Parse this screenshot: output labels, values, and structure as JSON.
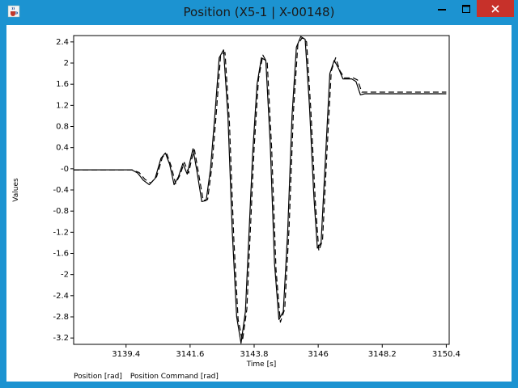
{
  "window": {
    "title": "Position (X5-1 | X-00148)",
    "accent_color": "#1c93d1",
    "close_button_color": "#c7312a",
    "controls": [
      "minimize-icon",
      "maximize-icon",
      "close-icon"
    ]
  },
  "chart_data": {
    "type": "line",
    "title": "",
    "xlabel": "Time [s]",
    "ylabel": "Values",
    "xlim": [
      3137.6,
      3150.5
    ],
    "ylim": [
      -3.32,
      2.52
    ],
    "x_ticks": [
      "3139.4",
      "3141.6",
      "3143.8",
      "3146",
      "3148.2",
      "3150.4"
    ],
    "y_ticks": [
      "2.4",
      "2",
      "1.6",
      "1.2",
      "0.8",
      "0.4",
      "-0",
      "-0.4",
      "-0.8",
      "-1.2",
      "-1.6",
      "-2",
      "-2.4",
      "-2.8",
      "-3.2"
    ],
    "grid": false,
    "legend_position": "bottom-left",
    "series": [
      {
        "name": "Position [rad]",
        "style": "solid",
        "color": "#000000",
        "x": [
          3137.6,
          3139.6,
          3139.8,
          3140.0,
          3140.2,
          3140.4,
          3140.6,
          3140.75,
          3140.9,
          3141.05,
          3141.2,
          3141.35,
          3141.5,
          3141.6,
          3141.7,
          3141.85,
          3142.0,
          3142.15,
          3142.3,
          3142.45,
          3142.6,
          3142.75,
          3142.9,
          3143.05,
          3143.2,
          3143.35,
          3143.5,
          3143.6,
          3143.75,
          3143.9,
          3144.05,
          3144.2,
          3144.35,
          3144.5,
          3144.65,
          3144.8,
          3144.95,
          3145.1,
          3145.25,
          3145.4,
          3145.55,
          3145.7,
          3145.85,
          3145.97,
          3146.1,
          3146.25,
          3146.4,
          3146.55,
          3146.7,
          3146.85,
          3147.0,
          3147.15,
          3147.3,
          3147.45,
          3147.6,
          3148.1,
          3148.2,
          3148.4,
          3150.4
        ],
        "y": [
          -0.02,
          -0.02,
          -0.08,
          -0.22,
          -0.3,
          -0.18,
          0.2,
          0.3,
          0.08,
          -0.3,
          -0.15,
          0.1,
          -0.1,
          0.15,
          0.38,
          -0.1,
          -0.62,
          -0.6,
          0.0,
          1.0,
          2.1,
          2.25,
          1.0,
          -1.2,
          -2.8,
          -3.3,
          -2.7,
          -1.5,
          0.3,
          1.6,
          2.1,
          2.05,
          0.5,
          -1.8,
          -2.85,
          -2.7,
          -1.2,
          1.0,
          2.3,
          2.5,
          2.45,
          1.2,
          -0.5,
          -1.5,
          -1.4,
          0.2,
          1.8,
          2.05,
          1.9,
          1.7,
          1.7,
          1.7,
          1.65,
          1.4,
          1.42,
          1.42,
          1.42,
          1.42,
          1.42
        ]
      },
      {
        "name": "Position Command [rad]",
        "style": "dashed",
        "color": "#000000",
        "x": [
          3137.6,
          3139.6,
          3139.85,
          3140.05,
          3140.25,
          3140.45,
          3140.65,
          3140.8,
          3140.95,
          3141.1,
          3141.25,
          3141.4,
          3141.55,
          3141.65,
          3141.75,
          3141.9,
          3142.05,
          3142.2,
          3142.35,
          3142.5,
          3142.65,
          3142.8,
          3142.95,
          3143.1,
          3143.25,
          3143.4,
          3143.55,
          3143.65,
          3143.8,
          3143.95,
          3144.1,
          3144.25,
          3144.4,
          3144.55,
          3144.7,
          3144.85,
          3145.0,
          3145.15,
          3145.3,
          3145.45,
          3145.6,
          3145.75,
          3145.9,
          3146.02,
          3146.15,
          3146.3,
          3146.45,
          3146.6,
          3146.75,
          3146.9,
          3147.05,
          3147.2,
          3147.35,
          3147.5,
          3147.65,
          3148.1,
          3148.2,
          3148.4,
          3150.4
        ],
        "y": [
          -0.02,
          -0.02,
          -0.07,
          -0.2,
          -0.27,
          -0.15,
          0.22,
          0.28,
          0.05,
          -0.28,
          -0.12,
          0.12,
          -0.08,
          0.18,
          0.36,
          -0.12,
          -0.6,
          -0.58,
          0.05,
          1.05,
          2.15,
          2.2,
          0.9,
          -1.3,
          -2.85,
          -3.25,
          -2.65,
          -1.4,
          0.4,
          1.7,
          2.15,
          2.0,
          0.4,
          -1.9,
          -2.9,
          -2.65,
          -1.1,
          1.1,
          2.35,
          2.48,
          2.4,
          1.1,
          -0.6,
          -1.55,
          -1.35,
          0.3,
          1.85,
          2.1,
          1.85,
          1.72,
          1.72,
          1.72,
          1.68,
          1.45,
          1.45,
          1.45,
          1.45,
          1.45,
          1.45
        ]
      }
    ]
  }
}
